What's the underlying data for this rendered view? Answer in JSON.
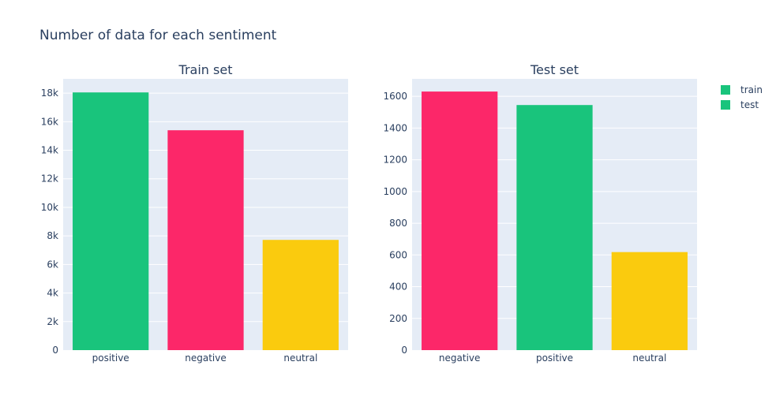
{
  "chart_data": {
    "type": "bar",
    "title": "Number of data for each sentiment",
    "colors": {
      "positive": "#19c47c",
      "negative": "#fc2769",
      "neutral": "#facb0e"
    },
    "subplots": [
      {
        "title": "Train set",
        "categories": [
          "positive",
          "negative",
          "neutral"
        ],
        "values": [
          18050,
          15400,
          7720
        ],
        "ylim": [
          0,
          19000
        ],
        "yticks": [
          0,
          2000,
          4000,
          6000,
          8000,
          10000,
          12000,
          14000,
          16000,
          18000
        ],
        "ytick_labels": [
          "0",
          "2k",
          "4k",
          "6k",
          "8k",
          "10k",
          "12k",
          "14k",
          "16k",
          "18k"
        ]
      },
      {
        "title": "Test set",
        "categories": [
          "negative",
          "positive",
          "neutral"
        ],
        "values": [
          1630,
          1545,
          618
        ],
        "ylim": [
          0,
          1710
        ],
        "yticks": [
          0,
          200,
          400,
          600,
          800,
          1000,
          1200,
          1400,
          1600
        ],
        "ytick_labels": [
          "0",
          "200",
          "400",
          "600",
          "800",
          "1000",
          "1200",
          "1400",
          "1600"
        ]
      }
    ],
    "legend": {
      "position": "top-right",
      "entries": [
        {
          "name": "train",
          "color": "#19c47c"
        },
        {
          "name": "test",
          "color": "#19c47c"
        }
      ]
    },
    "grid": true
  }
}
